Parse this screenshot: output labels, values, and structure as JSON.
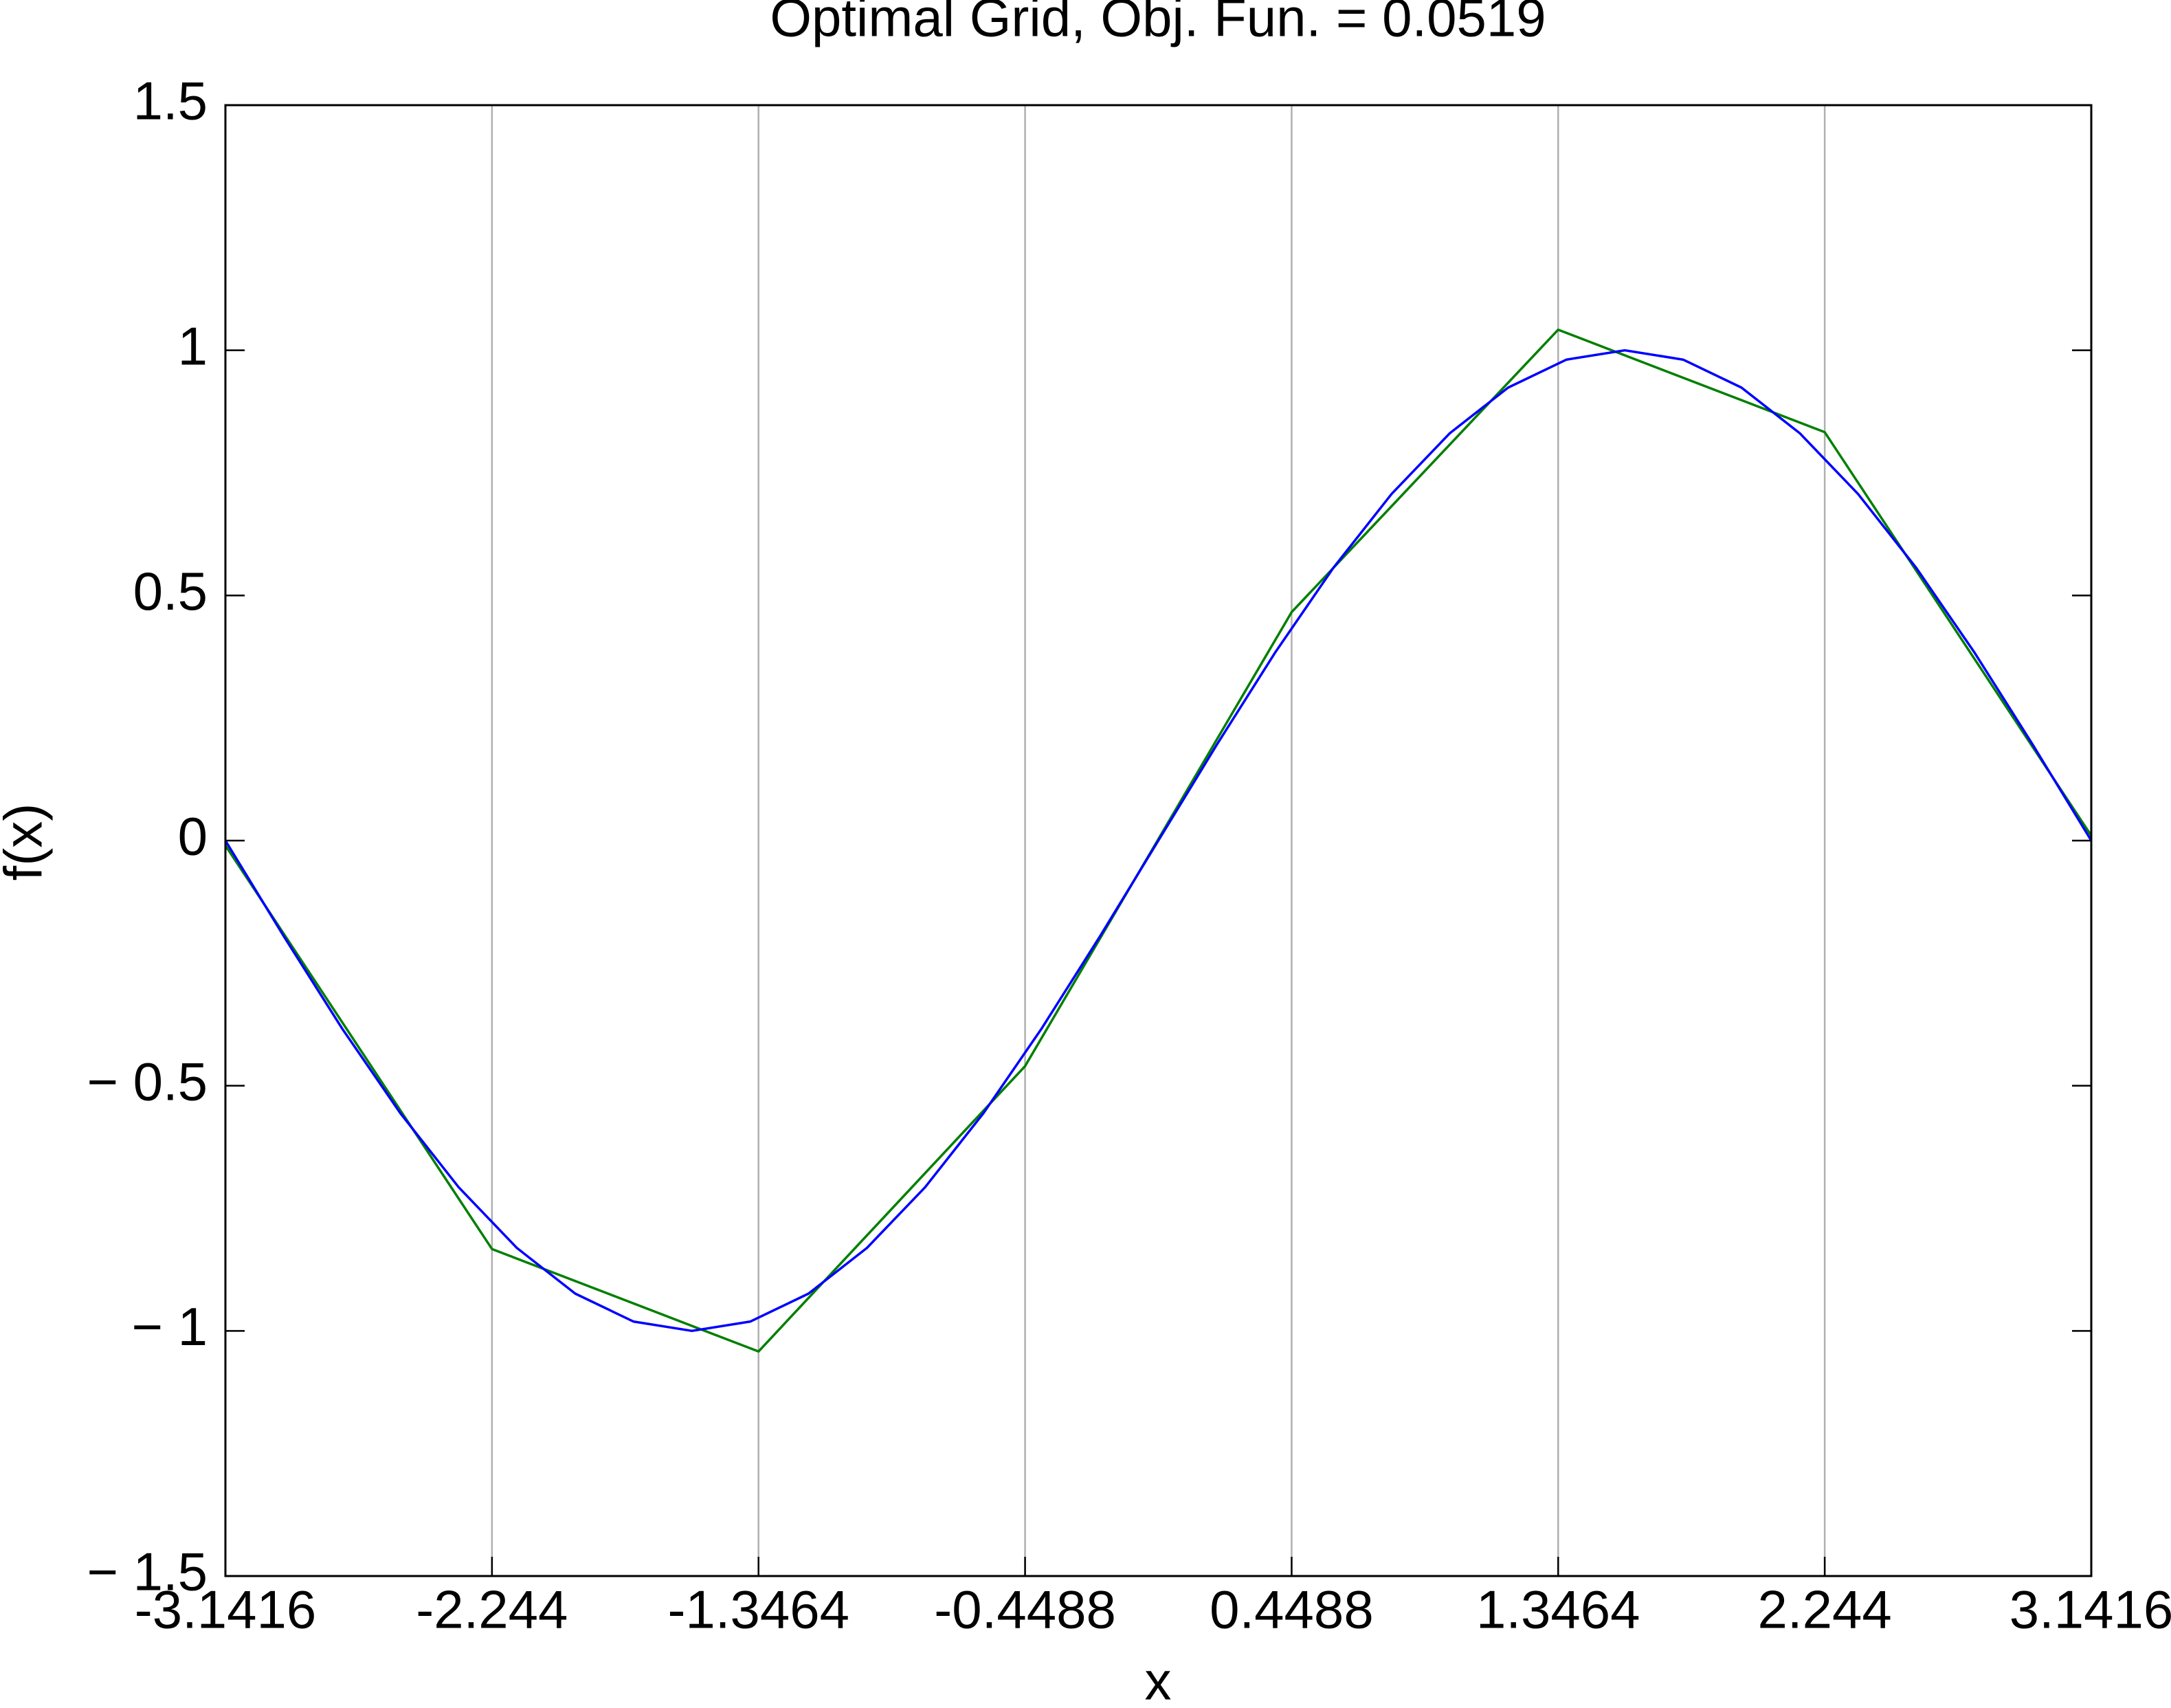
{
  "chart_data": {
    "type": "line",
    "title": "Optimal Grid, Obj. Fun. =  0.0519",
    "x_label": "x",
    "y_label": "f(x)",
    "series": [
      {
        "color": "#0000ff",
        "x": [
          -3.1416,
          -2.9452,
          -2.7489,
          -2.5525,
          -2.3562,
          -2.1598,
          -1.9635,
          -1.7671,
          -1.5708,
          -1.3744,
          -1.1781,
          -0.9817,
          -0.7854,
          -0.589,
          -0.3927,
          -0.1963,
          0,
          0.1963,
          0.3927,
          0.589,
          0.7854,
          0.9817,
          1.1781,
          1.3744,
          1.5708,
          1.7671,
          1.9635,
          2.1598,
          2.3562,
          2.5525,
          2.7489,
          2.9452,
          3.1416
        ],
        "values": [
          0,
          -0.195,
          -0.383,
          -0.556,
          -0.707,
          -0.831,
          -0.924,
          -0.981,
          -1,
          -0.981,
          -0.924,
          -0.831,
          -0.707,
          -0.556,
          -0.383,
          -0.195,
          0,
          0.195,
          0.383,
          0.556,
          0.707,
          0.831,
          0.924,
          0.981,
          1,
          0.981,
          0.924,
          0.831,
          0.707,
          0.556,
          0.383,
          0.195,
          0
        ]
      },
      {
        "color": "#007f00",
        "x": [
          -3.1416,
          -2.244,
          -1.3464,
          -0.4488,
          0.4488,
          1.3464,
          2.244,
          3.1416
        ],
        "values": [
          -0.01,
          -0.833,
          -1.042,
          -0.46,
          0.466,
          1.042,
          0.833,
          0.01
        ]
      }
    ],
    "xlim": [
      -3.1416,
      3.1416
    ],
    "xticks": [
      -3.1416,
      -2.244,
      -1.3464,
      -0.4488,
      0.4488,
      1.3464,
      2.244,
      3.1416
    ],
    "ylim": [
      -1.5,
      1.5
    ],
    "yticks": [
      {
        "value": -1.5,
        "label": "− 1.5"
      },
      {
        "value": -1,
        "label": "− 1"
      },
      {
        "value": -0.5,
        "label": "− 0.5"
      },
      0,
      0.5,
      1,
      1.5
    ],
    "xgrid": true,
    "ygrid": false
  }
}
